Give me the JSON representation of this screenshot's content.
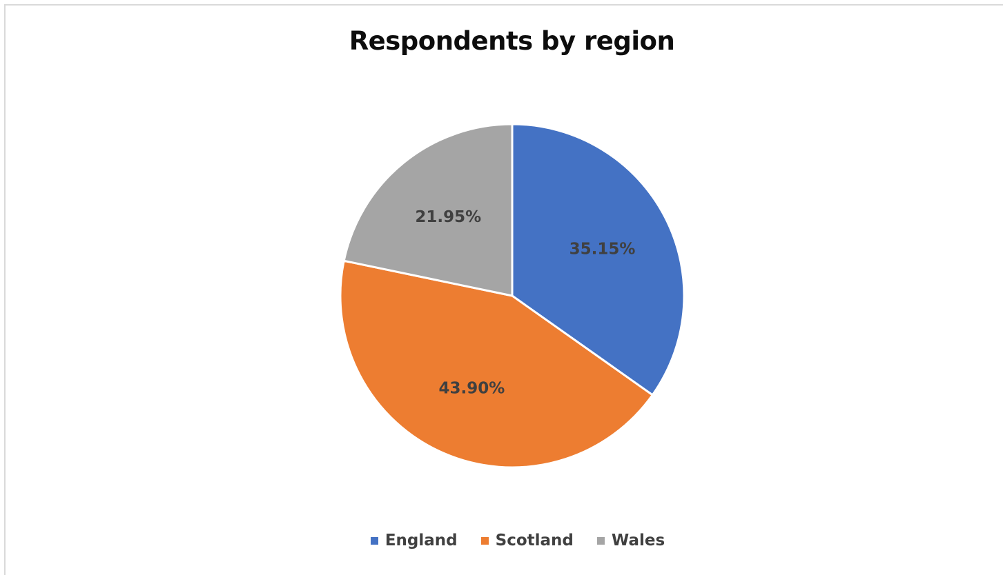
{
  "chart_data": {
    "type": "pie",
    "title": "Respondents by region",
    "categories": [
      "England",
      "Scotland",
      "Wales"
    ],
    "values": [
      35.15,
      43.9,
      21.95
    ],
    "labels": [
      "35.15%",
      "43.90%",
      "21.95%"
    ],
    "colors": [
      "#4472c4",
      "#ed7d31",
      "#a5a5a5"
    ],
    "start_angle": "12 o'clock, clockwise",
    "legend": "bottom"
  }
}
